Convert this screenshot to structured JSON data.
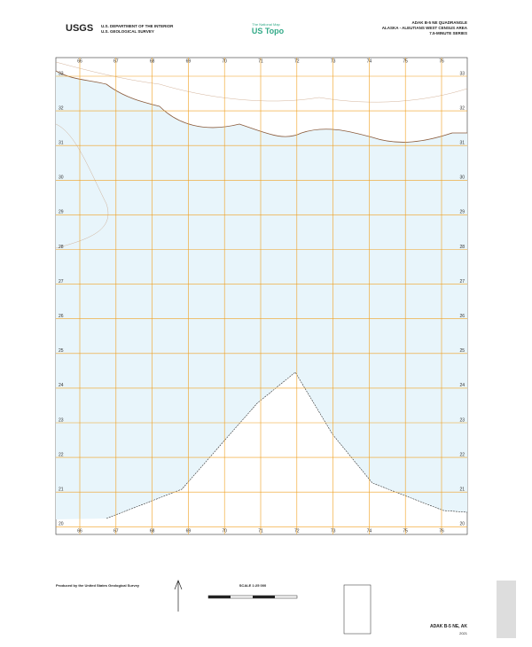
{
  "header": {
    "agency": "U.S. DEPARTMENT OF THE INTERIOR",
    "survey": "U.S. GEOLOGICAL SURVEY",
    "logo": "USGS",
    "national_map": "The National Map",
    "product": "US Topo",
    "quadrangle": "ADAK B-5 NE QUADRANGLE",
    "area": "ALASKA - ALEUTIANS WEST CENSUS AREA",
    "series": "7.5-MINUTE SERIES"
  },
  "grid": {
    "eastings": [
      "66",
      "67",
      "68",
      "69",
      "70",
      "71",
      "72",
      "73",
      "74",
      "75",
      "76"
    ],
    "northings": [
      "33",
      "32",
      "31",
      "30",
      "29",
      "28",
      "27",
      "26",
      "25",
      "24",
      "23",
      "22",
      "21",
      "20"
    ]
  },
  "footer": {
    "producer": "Produced by the United States Geological Survey",
    "scale": "SCALE 1:25 000",
    "name": "ADAK B-5 NE, AK",
    "year": "2021"
  }
}
